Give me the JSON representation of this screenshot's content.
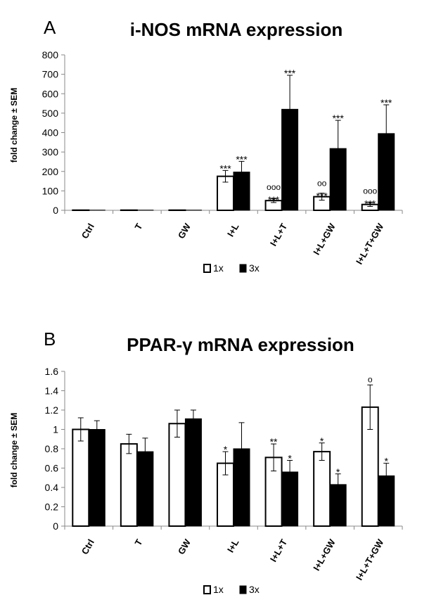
{
  "chart_data": [
    {
      "type": "bar",
      "panel_label": "A",
      "title": "i-NOS mRNA expression",
      "xlabel": "",
      "ylabel": "fold change ± SEM",
      "ylim": [
        0,
        800
      ],
      "yticks": [
        0,
        100,
        200,
        300,
        400,
        500,
        600,
        700,
        800
      ],
      "grid": false,
      "legend_position": "bottom",
      "categories": [
        "Ctrl",
        "T",
        "GW",
        "I+L",
        "I+L+T",
        "I+L+GW",
        "I+L+T+GW"
      ],
      "series": [
        {
          "name": "1x",
          "fill": "#ffffff",
          "values": [
            1,
            1,
            1,
            175,
            50,
            70,
            30
          ],
          "errors": [
            0,
            0,
            0,
            30,
            10,
            18,
            10
          ],
          "annotations": [
            "",
            "",
            "",
            "***",
            "ooo\n***",
            "oo\n***",
            "ooo\n***"
          ]
        },
        {
          "name": "3x",
          "fill": "#000000",
          "values": [
            1,
            1,
            1,
            197,
            520,
            318,
            395
          ],
          "errors": [
            0,
            0,
            0,
            55,
            175,
            145,
            148
          ],
          "annotations": [
            "",
            "",
            "",
            "***",
            "***",
            "***",
            "***"
          ]
        }
      ]
    },
    {
      "type": "bar",
      "panel_label": "B",
      "title": "PPAR-γ mRNA expression",
      "xlabel": "",
      "ylabel": "fold change ± SEM",
      "ylim": [
        0,
        1.6
      ],
      "yticks": [
        "0",
        "0.2",
        "0.4",
        "0.6",
        "0.8",
        "1",
        "1.2",
        "1.4",
        "1.6"
      ],
      "grid": false,
      "legend_position": "bottom",
      "categories": [
        "Ctrl",
        "T",
        "GW",
        "I+L",
        "I+L+T",
        "I+L+GW",
        "I+L+T+GW"
      ],
      "series": [
        {
          "name": "1x",
          "fill": "#ffffff",
          "values": [
            1.0,
            0.85,
            1.06,
            0.65,
            0.71,
            0.77,
            1.23
          ],
          "errors": [
            0.12,
            0.1,
            0.14,
            0.12,
            0.14,
            0.09,
            0.23
          ],
          "annotations": [
            "",
            "",
            "",
            "*",
            "**",
            "*",
            "o"
          ]
        },
        {
          "name": "3x",
          "fill": "#000000",
          "values": [
            1.0,
            0.77,
            1.11,
            0.8,
            0.56,
            0.43,
            0.52
          ],
          "errors": [
            0.09,
            0.14,
            0.09,
            0.27,
            0.12,
            0.11,
            0.13
          ],
          "annotations": [
            "",
            "",
            "",
            "",
            "*",
            "*",
            "*"
          ]
        }
      ]
    }
  ]
}
